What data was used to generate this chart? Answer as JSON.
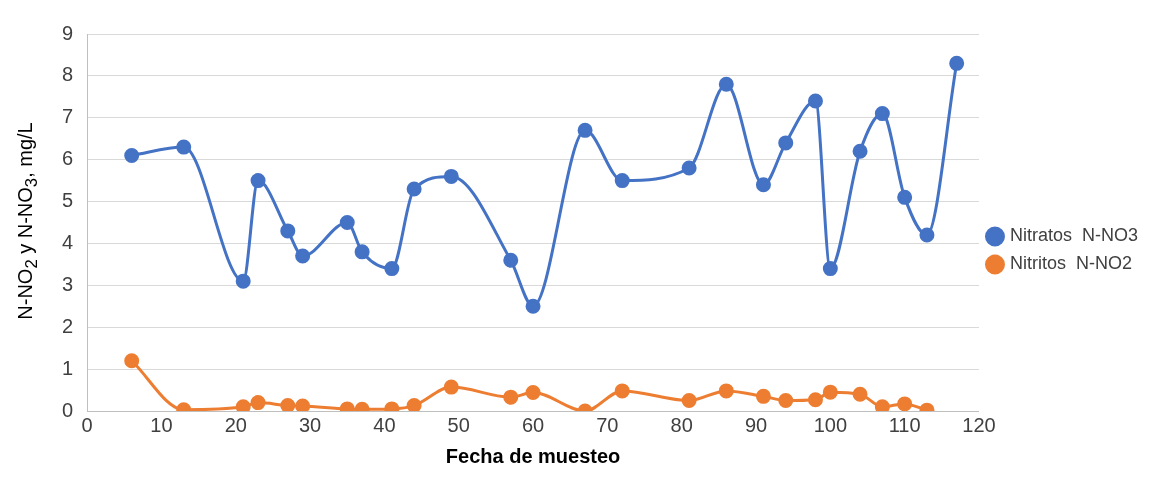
{
  "chart_data": {
    "type": "line",
    "xlabel": "Fecha de muesteo",
    "ylabel": "N-NO$_{2}$ y N-NO$_{3}$, mg/L",
    "xlim": [
      0,
      120
    ],
    "xticks": [
      0,
      10,
      20,
      30,
      40,
      50,
      60,
      70,
      80,
      90,
      100,
      110,
      120
    ],
    "ylim": [
      0,
      9
    ],
    "yticks": [
      0,
      1,
      2,
      3,
      4,
      5,
      6,
      7,
      8,
      9
    ],
    "grid": "y",
    "legend": "right",
    "marker": "circle",
    "line_style": "solid",
    "series": [
      {
        "name": "Nitratos  N-NO3",
        "color": "#4472c4",
        "x": [
          6,
          13,
          21,
          23,
          27,
          29,
          35,
          37,
          41,
          44,
          49,
          57,
          60,
          67,
          72,
          81,
          86,
          91,
          94,
          98,
          100,
          104,
          107,
          110,
          113,
          117
        ],
        "values": [
          6.1,
          6.3,
          3.1,
          5.5,
          4.3,
          3.7,
          4.5,
          3.8,
          3.4,
          5.3,
          5.6,
          3.6,
          2.5,
          6.7,
          5.5,
          5.8,
          7.8,
          5.4,
          6.4,
          7.4,
          3.4,
          6.2,
          7.1,
          5.1,
          4.2,
          8.3
        ]
      },
      {
        "name": "Nitritos  N-NO2",
        "color": "#ed7d31",
        "x": [
          6,
          13,
          21,
          23,
          27,
          29,
          35,
          37,
          41,
          44,
          49,
          57,
          60,
          67,
          72,
          81,
          86,
          91,
          94,
          98,
          100,
          104,
          107,
          110,
          113
        ],
        "values": [
          1.2,
          0.03,
          0.1,
          0.2,
          0.13,
          0.12,
          0.05,
          0.04,
          0.05,
          0.13,
          0.57,
          0.33,
          0.44,
          0.0,
          0.48,
          0.25,
          0.48,
          0.35,
          0.25,
          0.27,
          0.45,
          0.4,
          0.1,
          0.17,
          0.02
        ]
      }
    ]
  }
}
